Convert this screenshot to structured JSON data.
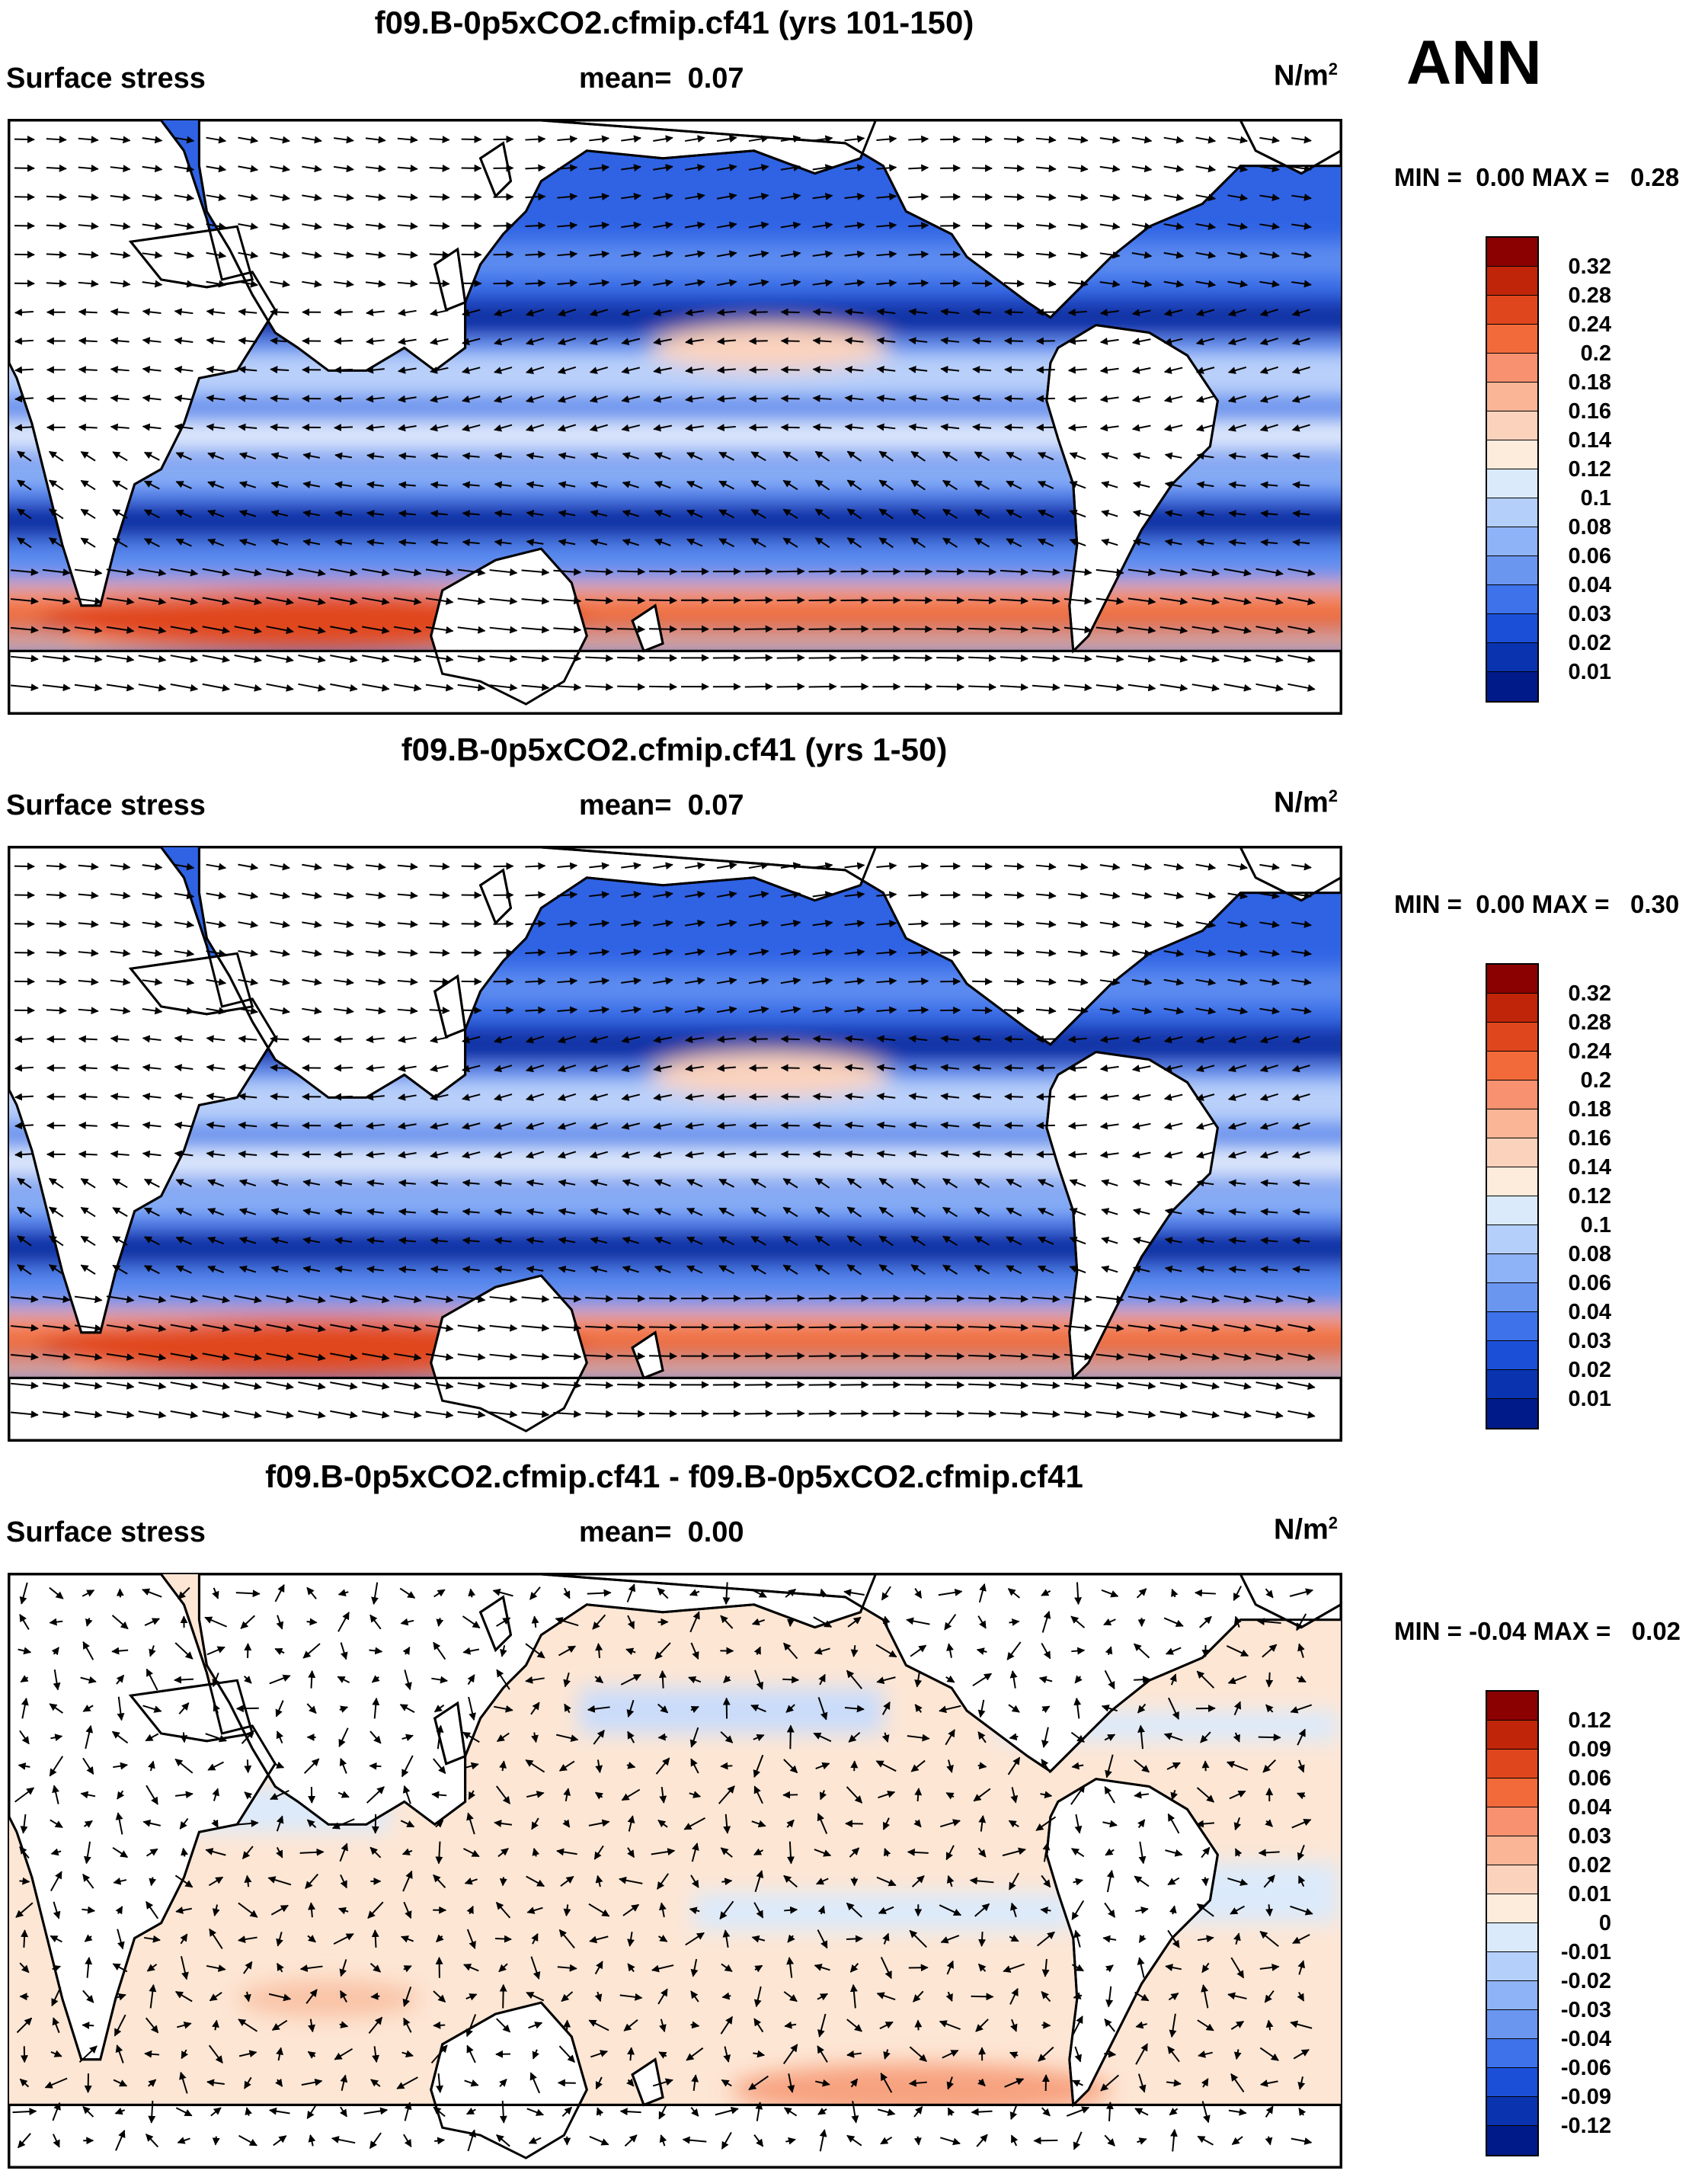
{
  "season": "ANN",
  "panels": [
    {
      "title": "f09.B-0p5xCO2.cfmip.cf41 (yrs 101-150)",
      "variable": "Surface stress",
      "mean_label": "mean=",
      "mean_value": "0.07",
      "units_base": "N/m",
      "units_exp": "2",
      "minmax": {
        "min_label": "MIN =",
        "min": "0.00",
        "max_label": "MAX =",
        "max": "0.28"
      },
      "colorbar": {
        "labels": [
          "0.32",
          "0.28",
          "0.24",
          "0.2",
          "0.18",
          "0.16",
          "0.14",
          "0.12",
          "0.1",
          "0.08",
          "0.06",
          "0.04",
          "0.03",
          "0.02",
          "0.01"
        ],
        "colors": [
          "#8b0000",
          "#c0250a",
          "#e0461d",
          "#f26a3a",
          "#f79170",
          "#f9b596",
          "#fbd3bd",
          "#fdebdc",
          "#dbeafb",
          "#b5cffb",
          "#8fb3f7",
          "#6a96f0",
          "#3d72ea",
          "#1c4fd8",
          "#0a33b0",
          "#001a8a"
        ]
      }
    },
    {
      "title": "f09.B-0p5xCO2.cfmip.cf41 (yrs 1-50)",
      "variable": "Surface stress",
      "mean_label": "mean=",
      "mean_value": "0.07",
      "units_base": "N/m",
      "units_exp": "2",
      "minmax": {
        "min_label": "MIN =",
        "min": "0.00",
        "max_label": "MAX =",
        "max": "0.30"
      },
      "colorbar": {
        "labels": [
          "0.32",
          "0.28",
          "0.24",
          "0.2",
          "0.18",
          "0.16",
          "0.14",
          "0.12",
          "0.1",
          "0.08",
          "0.06",
          "0.04",
          "0.03",
          "0.02",
          "0.01"
        ],
        "colors": [
          "#8b0000",
          "#c0250a",
          "#e0461d",
          "#f26a3a",
          "#f79170",
          "#f9b596",
          "#fbd3bd",
          "#fdebdc",
          "#dbeafb",
          "#b5cffb",
          "#8fb3f7",
          "#6a96f0",
          "#3d72ea",
          "#1c4fd8",
          "#0a33b0",
          "#001a8a"
        ]
      }
    },
    {
      "title": "f09.B-0p5xCO2.cfmip.cf41 - f09.B-0p5xCO2.cfmip.cf41",
      "variable": "Surface stress",
      "mean_label": "mean=",
      "mean_value": "0.00",
      "units_base": "N/m",
      "units_exp": "2",
      "minmax": {
        "min_label": "MIN =",
        "min": "-0.04",
        "max_label": "MAX =",
        "max": "0.02"
      },
      "colorbar": {
        "labels": [
          "0.12",
          "0.09",
          "0.06",
          "0.04",
          "0.03",
          "0.02",
          "0.01",
          "0",
          "-0.01",
          "-0.02",
          "-0.03",
          "-0.04",
          "-0.06",
          "-0.09",
          "-0.12"
        ],
        "colors": [
          "#8b0000",
          "#c0250a",
          "#e0461d",
          "#f26a3a",
          "#f79170",
          "#f9b596",
          "#fbd3bd",
          "#fdebdc",
          "#dbeafb",
          "#b5cffb",
          "#8fb3f7",
          "#6a96f0",
          "#3d72ea",
          "#1c4fd8",
          "#0a33b0",
          "#001a8a"
        ]
      }
    }
  ]
}
